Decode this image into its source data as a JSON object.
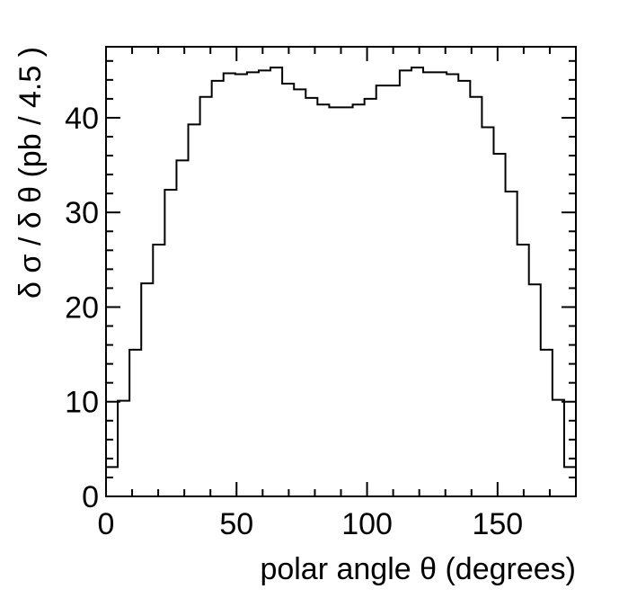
{
  "chart_data": {
    "type": "histogram",
    "title": "",
    "xlabel": "polar angle θ (degrees)",
    "ylabel": "δ σ / δ θ (pb / 4.5 )",
    "xlim": [
      0,
      180
    ],
    "ylim": [
      0,
      47.5
    ],
    "grid": false,
    "bin_width": 4.5,
    "bin_edges": [
      0,
      4.5,
      9,
      13.5,
      18,
      22.5,
      27,
      31.5,
      36,
      40.5,
      45,
      49.5,
      54,
      58.5,
      63,
      67.5,
      72,
      76.5,
      81,
      85.5,
      90,
      94.5,
      99,
      103.5,
      108,
      112.5,
      117,
      121.5,
      126,
      130.5,
      135,
      139.5,
      144,
      148.5,
      153,
      157.5,
      162,
      166.5,
      171,
      175.5,
      180
    ],
    "values": [
      3.1,
      10.1,
      15.5,
      22.5,
      26.6,
      32.4,
      35.5,
      39.3,
      42.2,
      43.9,
      44.7,
      44.6,
      44.8,
      45.0,
      45.3,
      43.6,
      43.0,
      42.1,
      41.4,
      41.1,
      41.1,
      41.4,
      42.0,
      43.4,
      43.4,
      45.0,
      45.3,
      44.8,
      44.8,
      44.6,
      43.9,
      42.2,
      39.0,
      36.2,
      32.2,
      26.6,
      22.4,
      15.5,
      10.2,
      3.1
    ],
    "xticks_major": [
      0,
      50,
      100,
      150
    ],
    "xtick_labels": [
      "0",
      "50",
      "100",
      "150"
    ],
    "yticks_major": [
      0,
      10,
      20,
      30,
      40
    ],
    "ytick_labels": [
      "0",
      "10",
      "20",
      "30",
      "40"
    ]
  }
}
